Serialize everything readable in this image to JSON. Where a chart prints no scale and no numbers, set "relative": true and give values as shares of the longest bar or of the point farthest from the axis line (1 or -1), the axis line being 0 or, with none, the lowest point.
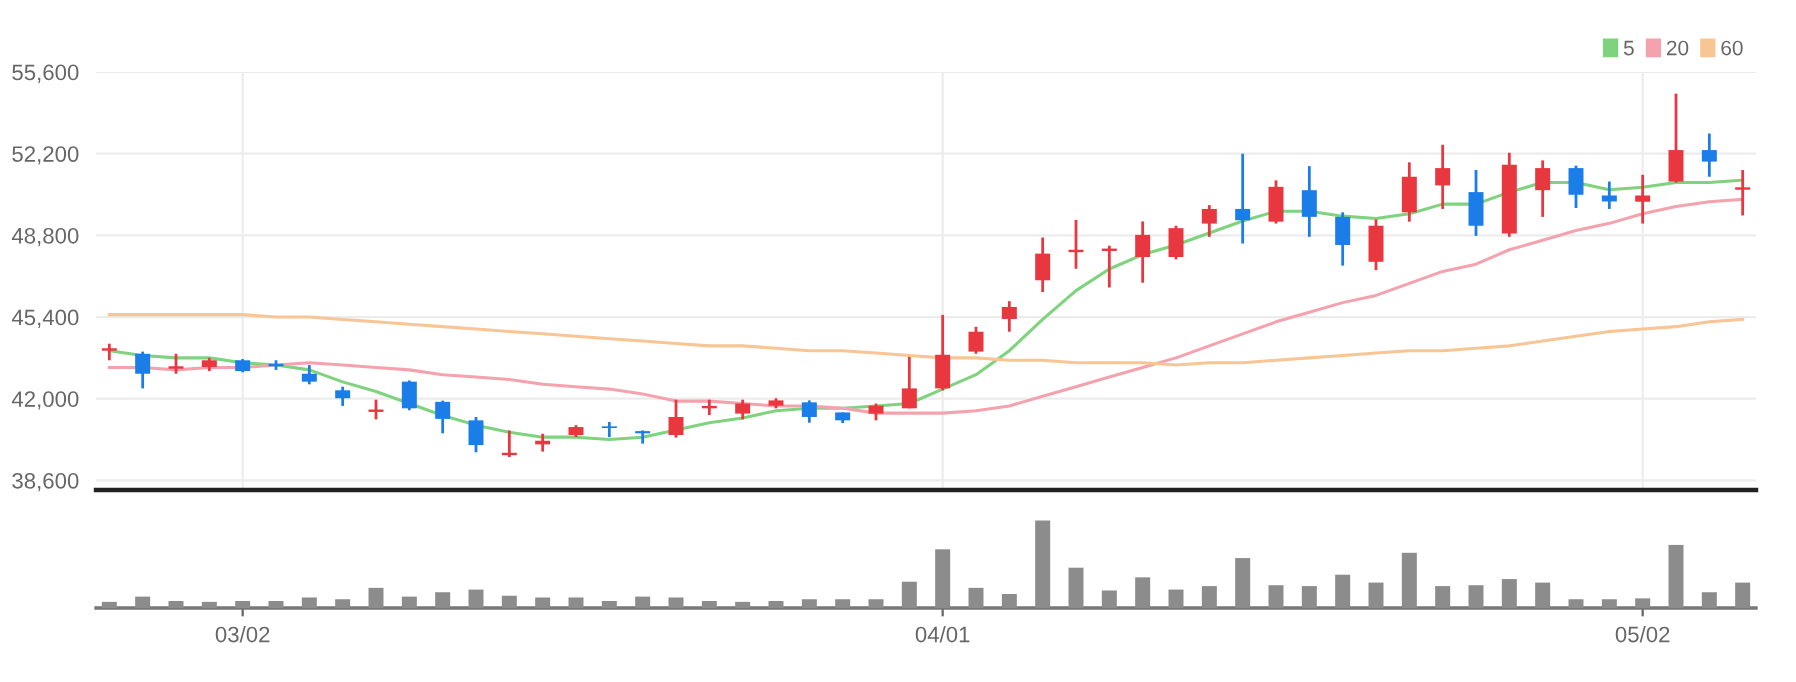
{
  "chart_data": [
    {
      "type": "candlestick",
      "categories": [
        null,
        null,
        null,
        null,
        null,
        null,
        null,
        null,
        null,
        null,
        null,
        null,
        null,
        null,
        null,
        null,
        null,
        null,
        null,
        null,
        null,
        null,
        null,
        null,
        null,
        null,
        null,
        null,
        null,
        null,
        null,
        null,
        null,
        null,
        null,
        null,
        null,
        null,
        null,
        null,
        null,
        null,
        null,
        null,
        null,
        null,
        null,
        null,
        null,
        null
      ],
      "ohlc": [
        [
          44000,
          44290,
          43600,
          44100
        ],
        [
          43870,
          43960,
          42430,
          43040
        ],
        [
          43250,
          43870,
          43040,
          43350
        ],
        [
          43320,
          43700,
          43150,
          43600
        ],
        [
          43600,
          43650,
          43100,
          43150
        ],
        [
          43450,
          43600,
          43200,
          43350
        ],
        [
          43040,
          43400,
          42600,
          42710
        ],
        [
          42350,
          42500,
          41700,
          42020
        ],
        [
          41450,
          41960,
          41140,
          41550
        ],
        [
          42710,
          42760,
          41520,
          41600
        ],
        [
          41870,
          41920,
          40560,
          41160
        ],
        [
          41100,
          41240,
          39770,
          40070
        ],
        [
          39650,
          40680,
          39570,
          39750
        ],
        [
          40100,
          40540,
          39800,
          40250
        ],
        [
          40490,
          40900,
          40400,
          40820
        ],
        [
          40850,
          41030,
          40400,
          40780
        ],
        [
          40650,
          40680,
          40130,
          40560
        ],
        [
          40490,
          41960,
          40380,
          41240
        ],
        [
          41600,
          41960,
          41320,
          41700
        ],
        [
          41380,
          41960,
          41140,
          41800
        ],
        [
          41710,
          42020,
          41600,
          41930
        ],
        [
          41850,
          41930,
          41000,
          41240
        ],
        [
          41430,
          41430,
          40990,
          41100
        ],
        [
          41380,
          41800,
          41100,
          41710
        ],
        [
          41600,
          43740,
          41600,
          42430
        ],
        [
          42430,
          45490,
          42350,
          43830
        ],
        [
          43960,
          44990,
          43870,
          44790
        ],
        [
          45320,
          46060,
          44790,
          45820
        ],
        [
          46930,
          48710,
          46440,
          48040
        ],
        [
          48100,
          49440,
          47410,
          48200
        ],
        [
          48150,
          48370,
          46630,
          48250
        ],
        [
          47900,
          49380,
          46830,
          48820
        ],
        [
          47900,
          49200,
          47800,
          49100
        ],
        [
          49290,
          50060,
          48740,
          49900
        ],
        [
          49900,
          52200,
          48460,
          49430
        ],
        [
          49370,
          51090,
          49290,
          50820
        ],
        [
          50680,
          51680,
          48740,
          49570
        ],
        [
          49570,
          49760,
          47540,
          48400
        ],
        [
          47700,
          49460,
          47350,
          49200
        ],
        [
          49760,
          51840,
          49370,
          51240
        ],
        [
          50880,
          52570,
          49900,
          51600
        ],
        [
          50600,
          51520,
          48780,
          49200
        ],
        [
          48880,
          52240,
          48740,
          51740
        ],
        [
          50680,
          51920,
          49570,
          51600
        ],
        [
          51600,
          51700,
          49940,
          50490
        ],
        [
          50460,
          51040,
          49900,
          50210
        ],
        [
          50200,
          51320,
          49290,
          50460
        ],
        [
          51040,
          54700,
          51000,
          52350
        ],
        [
          52350,
          53040,
          51240,
          51870
        ],
        [
          50700,
          51520,
          49630,
          50800
        ]
      ],
      "colors": [
        "#e8373e",
        "#1a7de8",
        "#e8373e",
        "#e8373e",
        "#1a7de8",
        "#1a7de8",
        "#1a7de8",
        "#1a7de8",
        "#e8373e",
        "#1a7de8",
        "#1a7de8",
        "#1a7de8",
        "#e8373e",
        "#e8373e",
        "#e8373e",
        "#1a7de8",
        "#1a7de8",
        "#e8373e",
        "#e8373e",
        "#e8373e",
        "#e8373e",
        "#1a7de8",
        "#1a7de8",
        "#e8373e",
        "#e8373e",
        "#e8373e",
        "#e8373e",
        "#e8373e",
        "#e8373e",
        "#e8373e",
        "#e8373e",
        "#e8373e",
        "#e8373e",
        "#e8373e",
        "#1a7de8",
        "#e8373e",
        "#1a7de8",
        "#1a7de8",
        "#e8373e",
        "#e8373e",
        "#e8373e",
        "#1a7de8",
        "#e8373e",
        "#e8373e",
        "#1a7de8",
        "#1a7de8",
        "#e8373e",
        "#e8373e",
        "#1a7de8",
        "#e8373e"
      ],
      "series": [
        {
          "name": "5",
          "type": "line",
          "color": "#7fd37f",
          "values": [
            44000,
            43800,
            43700,
            43700,
            43500,
            43400,
            43200,
            42700,
            42300,
            41800,
            41300,
            40900,
            40600,
            40400,
            40400,
            40300,
            40400,
            40700,
            41000,
            41200,
            41500,
            41600,
            41600,
            41700,
            41800,
            42400,
            43000,
            44000,
            45300,
            46500,
            47400,
            48000,
            48400,
            48900,
            49400,
            49800,
            49800,
            49600,
            49500,
            49700,
            50100,
            50100,
            50600,
            51000,
            51000,
            50700,
            50800,
            51000,
            51000,
            51100
          ]
        },
        {
          "name": "20",
          "type": "line",
          "color": "#f4a3ae",
          "values": [
            43300,
            43300,
            43200,
            43300,
            43300,
            43400,
            43500,
            43400,
            43300,
            43200,
            43000,
            42900,
            42800,
            42600,
            42500,
            42400,
            42200,
            41900,
            41900,
            41800,
            41700,
            41700,
            41600,
            41400,
            41400,
            41400,
            41500,
            41700,
            42100,
            42500,
            42900,
            43300,
            43700,
            44200,
            44700,
            45200,
            45600,
            46000,
            46300,
            46800,
            47300,
            47600,
            48200,
            48600,
            49000,
            49300,
            49700,
            50000,
            50200,
            50300
          ]
        },
        {
          "name": "60",
          "type": "line",
          "color": "#f8c594",
          "values": [
            45500,
            45500,
            45500,
            45500,
            45500,
            45400,
            45400,
            45300,
            45200,
            45100,
            45000,
            44900,
            44800,
            44700,
            44600,
            44500,
            44400,
            44300,
            44200,
            44200,
            44100,
            44000,
            44000,
            43900,
            43800,
            43700,
            43700,
            43600,
            43600,
            43500,
            43500,
            43500,
            43400,
            43500,
            43500,
            43600,
            43700,
            43800,
            43900,
            44000,
            44000,
            44100,
            44200,
            44400,
            44600,
            44800,
            44900,
            45000,
            45200,
            45300
          ]
        }
      ],
      "ylim": [
        38200,
        55600
      ],
      "yticks": [
        {
          "value": 38600,
          "label": "38,600"
        },
        {
          "value": 42000,
          "label": "42,000"
        },
        {
          "value": 45400,
          "label": "45,400"
        },
        {
          "value": 48800,
          "label": "48,800"
        },
        {
          "value": 52200,
          "label": "52,200"
        },
        {
          "value": 55600,
          "label": "55,600"
        }
      ],
      "grid": true,
      "legend": "top right",
      "tick_labels": "y"
    },
    {
      "type": "bar",
      "categories": [
        null,
        null,
        null,
        null,
        "03/02",
        null,
        null,
        null,
        null,
        null,
        null,
        null,
        null,
        null,
        null,
        null,
        null,
        null,
        null,
        null,
        null,
        null,
        null,
        null,
        null,
        "04/01",
        null,
        null,
        null,
        null,
        null,
        null,
        null,
        null,
        null,
        null,
        null,
        null,
        null,
        null,
        null,
        null,
        null,
        null,
        null,
        null,
        "05/02",
        null,
        null,
        null
      ],
      "values": [
        0.07,
        0.13,
        0.08,
        0.07,
        0.08,
        0.08,
        0.12,
        0.1,
        0.23,
        0.13,
        0.18,
        0.21,
        0.14,
        0.12,
        0.12,
        0.08,
        0.13,
        0.12,
        0.08,
        0.07,
        0.08,
        0.1,
        0.1,
        0.1,
        0.3,
        0.67,
        0.23,
        0.16,
        1,
        0.46,
        0.2,
        0.35,
        0.21,
        0.25,
        0.57,
        0.26,
        0.25,
        0.38,
        0.29,
        0.63,
        0.25,
        0.26,
        0.33,
        0.29,
        0.1,
        0.1,
        0.11,
        0.72,
        0.18,
        0.29
      ],
      "color": "#8c8c8c",
      "relative": true,
      "tick_labels": "x"
    }
  ]
}
